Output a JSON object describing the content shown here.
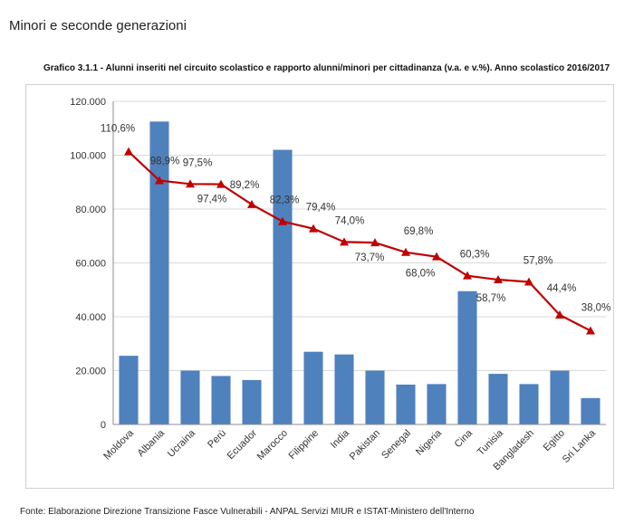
{
  "page": {
    "heading": "Minori e seconde generazioni",
    "source": "Fonte: Elaborazione Direzione Transizione Fasce Vulnerabili - ANPAL Servizi MIUR e ISTAT-Ministero dell'Interno"
  },
  "chart_data": {
    "type": "bar",
    "title": "Grafico 3.1.1 - Alunni inseriti nel circuito scolastico e rapporto alunni/minori per cittadinanza (v.a. e v.%). Anno scolastico 2016/2017",
    "xlabel": "",
    "ylabel": "",
    "ylim": [
      0,
      120000
    ],
    "yticks": [
      "0",
      "20.000",
      "40.000",
      "60.000",
      "80.000",
      "100.000",
      "120.000"
    ],
    "grid": true,
    "legend": "none",
    "categories": [
      "Moldova",
      "Albania",
      "Ucraina",
      "Perù",
      "Ecuador",
      "Marocco",
      "Filippine",
      "India",
      "Pakistan",
      "Senegal",
      "Nigeria",
      "Cina",
      "Tunisia",
      "Bangladesh",
      "Egitto",
      "Sri Lanka"
    ],
    "series": [
      {
        "type": "bar",
        "color": "#4f81bd",
        "values": [
          25500,
          112500,
          20000,
          18000,
          16500,
          102000,
          27000,
          26000,
          20000,
          14800,
          15000,
          49500,
          18800,
          15000,
          20000,
          9800
        ]
      },
      {
        "type": "line",
        "color": "#c00000",
        "marker": "triangle",
        "values": [
          110.6,
          98.9,
          97.5,
          97.4,
          89.2,
          82.3,
          79.4,
          74.0,
          73.7,
          69.8,
          68.0,
          60.3,
          58.7,
          57.8,
          44.4,
          38.0
        ],
        "labels": [
          "110,6%",
          "98,9%",
          "97,5%",
          "97,4%",
          "89,2%",
          "82,3%",
          "79,4%",
          "74,0%",
          "73,7%",
          "69,8%",
          "68,0%",
          "60,3%",
          "58,7%",
          "57,8%",
          "44,4%",
          "38,0%"
        ]
      }
    ]
  }
}
